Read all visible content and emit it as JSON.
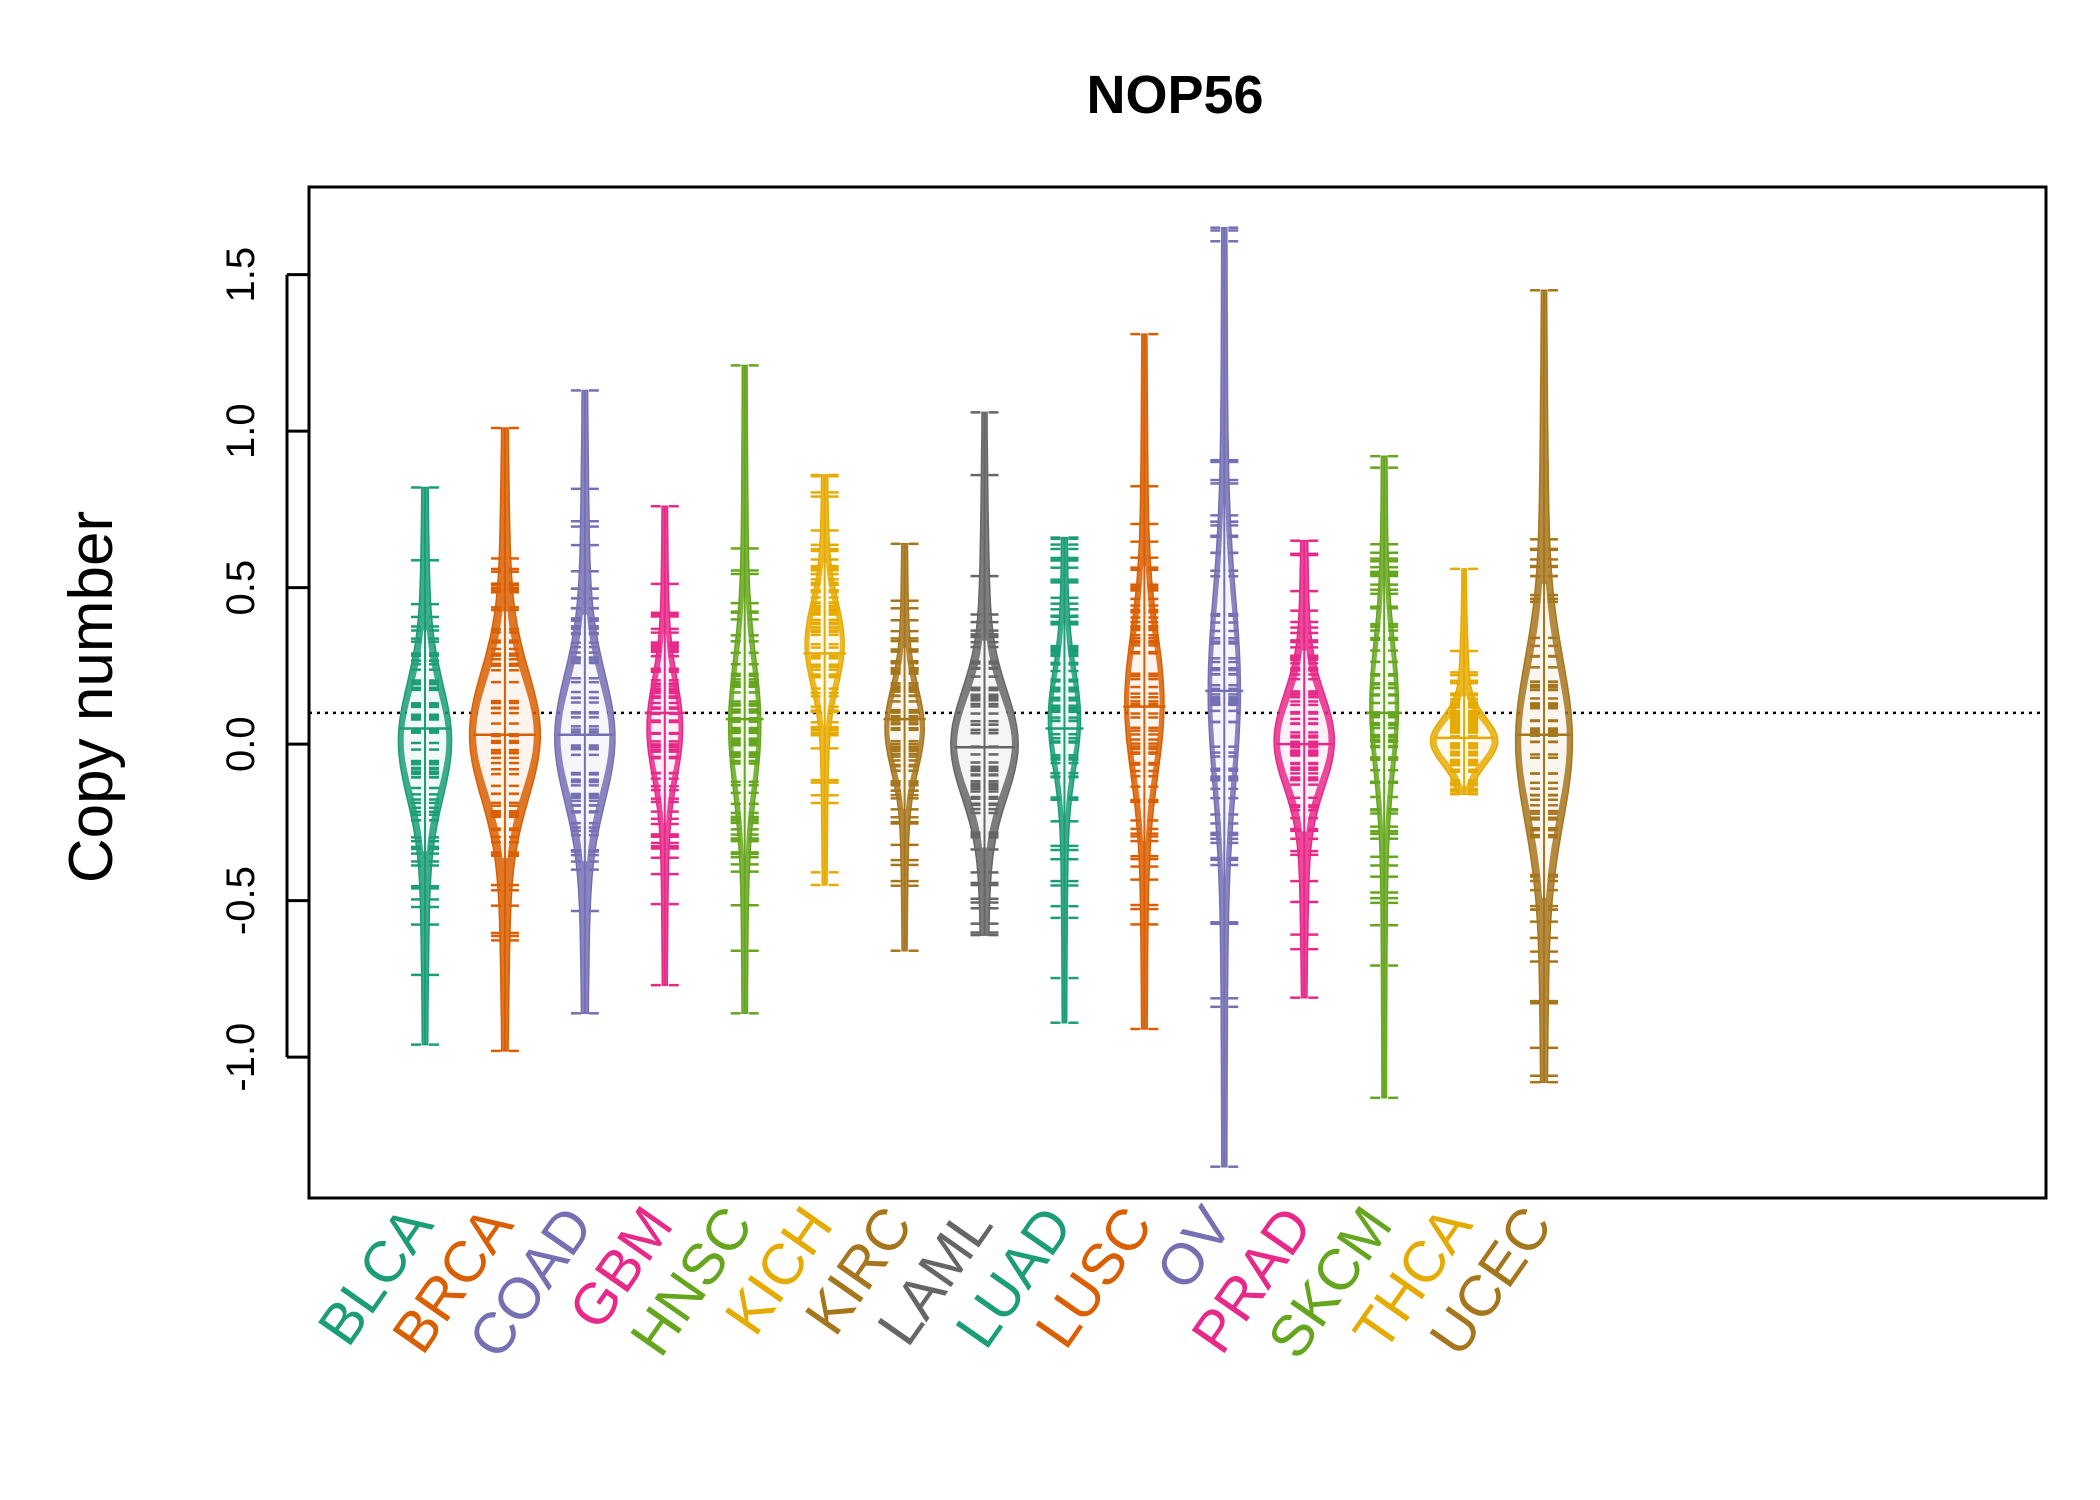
{
  "chart_data": {
    "type": "beanplot",
    "title": "NOP56",
    "xlabel": "",
    "ylabel": "Copy number",
    "ylim": [
      -1.45,
      1.78
    ],
    "yticks": [
      "-1.0",
      "-0.5",
      "0.0",
      "0.5",
      "1.0",
      "1.5"
    ],
    "ytick_values": [
      -1.0,
      -0.5,
      0.0,
      0.5,
      1.0,
      1.5
    ],
    "reference_line": 0.1,
    "grid": false,
    "categories": [
      "BLCA",
      "BRCA",
      "COAD",
      "GBM",
      "HNSC",
      "KICH",
      "KIRC",
      "LAML",
      "LUAD",
      "LUSC",
      "OV",
      "PRAD",
      "SKCM",
      "THCA",
      "UCEC"
    ],
    "colors": [
      "#1B9E77",
      "#D95F02",
      "#7570B3",
      "#E7298A",
      "#66A61E",
      "#E6AB02",
      "#A6761D",
      "#666666",
      "#1B9E77",
      "#D95F02",
      "#7570B3",
      "#E7298A",
      "#66A61E",
      "#E6AB02",
      "#A6761D"
    ],
    "series": [
      {
        "min": -0.96,
        "max": 0.82,
        "median": 0.02,
        "mean": 0.05,
        "mode": 0.01,
        "width": 0.28
      },
      {
        "min": -0.98,
        "max": 1.01,
        "median": 0.03,
        "mean": 0.03,
        "mode": 0.03,
        "width": 0.38
      },
      {
        "min": -0.86,
        "max": 1.13,
        "median": 0.02,
        "mean": 0.03,
        "mode": 0.02,
        "width": 0.32
      },
      {
        "min": -0.77,
        "max": 0.76,
        "median": 0.05,
        "mean": 0.1,
        "mode": 0.05,
        "width": 0.18
      },
      {
        "min": -0.86,
        "max": 1.21,
        "median": 0.06,
        "mean": 0.08,
        "mode": 0.06,
        "width": 0.16
      },
      {
        "min": -0.45,
        "max": 0.86,
        "median": 0.3,
        "mean": 0.29,
        "mode": 0.32,
        "width": 0.2
      },
      {
        "min": -0.66,
        "max": 0.64,
        "median": 0.05,
        "mean": 0.08,
        "mode": 0.05,
        "width": 0.2
      },
      {
        "min": -0.61,
        "max": 1.06,
        "median": 0.0,
        "mean": -0.01,
        "mode": 0.0,
        "width": 0.36
      },
      {
        "min": -0.89,
        "max": 0.66,
        "median": 0.07,
        "mean": 0.05,
        "mode": 0.08,
        "width": 0.16
      },
      {
        "min": -0.91,
        "max": 1.31,
        "median": 0.13,
        "mean": 0.12,
        "mode": 0.13,
        "width": 0.2
      },
      {
        "min": -1.35,
        "max": 1.65,
        "median": 0.17,
        "mean": 0.17,
        "mode": 0.17,
        "width": 0.16
      },
      {
        "min": -0.81,
        "max": 0.65,
        "median": 0.01,
        "mean": 0.0,
        "mode": 0.01,
        "width": 0.32
      },
      {
        "min": -1.13,
        "max": 0.92,
        "median": 0.12,
        "mean": 0.1,
        "mode": 0.12,
        "width": 0.14
      },
      {
        "min": -0.16,
        "max": 0.56,
        "median": 0.01,
        "mean": 0.02,
        "mode": 0.01,
        "width": 0.36
      },
      {
        "min": -1.08,
        "max": 1.45,
        "median": 0.01,
        "mean": 0.03,
        "mode": 0.01,
        "width": 0.3
      }
    ]
  }
}
